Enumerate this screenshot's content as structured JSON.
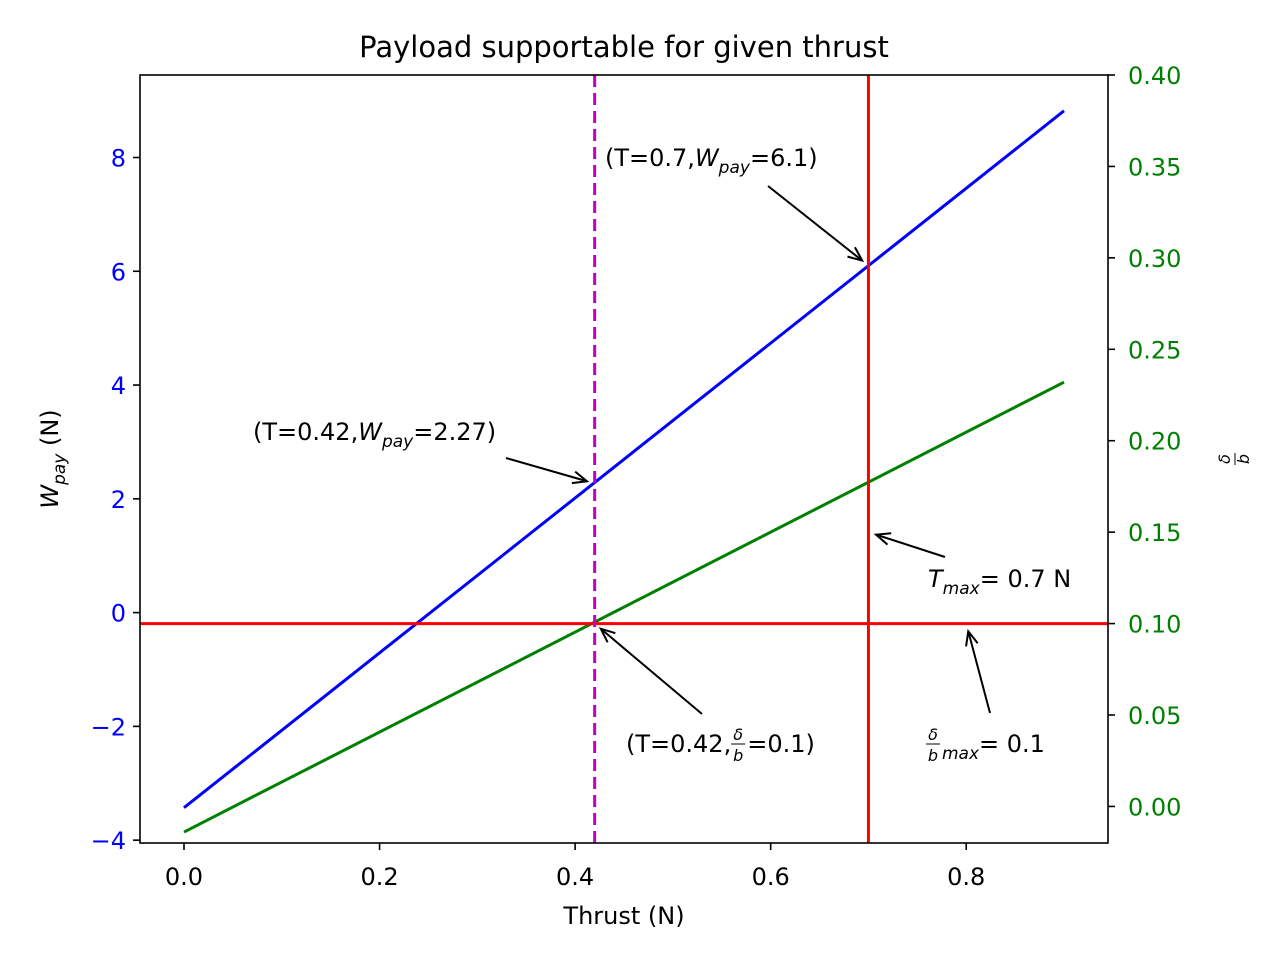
{
  "chart_data": {
    "type": "line",
    "title": "Payload supportable for given thrust",
    "xlabel": "Thrust (N)",
    "ylabel_left": {
      "base": "W",
      "sub": "pay",
      "suffix": " (N)"
    },
    "ylabel_right": {
      "num": "δ",
      "den": "b"
    },
    "xlim": [
      -0.045,
      0.945
    ],
    "ylim_left": [
      -4.05,
      9.45
    ],
    "ylim_right": [
      -0.02,
      0.4
    ],
    "x_ticks": [
      0.0,
      0.2,
      0.4,
      0.6,
      0.8
    ],
    "x_tick_labels": [
      "0.0",
      "0.2",
      "0.4",
      "0.6",
      "0.8"
    ],
    "y_left_ticks": [
      -4,
      -2,
      0,
      2,
      4,
      6,
      8
    ],
    "y_left_tick_labels": [
      "−4",
      "−2",
      "0",
      "2",
      "4",
      "6",
      "8"
    ],
    "y_right_ticks": [
      0.0,
      0.05,
      0.1,
      0.15,
      0.2,
      0.25,
      0.3,
      0.35,
      0.4
    ],
    "y_right_tick_labels": [
      "0.00",
      "0.05",
      "0.10",
      "0.15",
      "0.20",
      "0.25",
      "0.30",
      "0.35",
      "0.40"
    ],
    "grid": false,
    "series": [
      {
        "axis": "left",
        "color": "#0000ff",
        "x": [
          0.0,
          0.9
        ],
        "y": [
          -3.43,
          8.82
        ]
      },
      {
        "axis": "right",
        "color": "#008000",
        "x": [
          0.0,
          0.9
        ],
        "y": [
          -0.014,
          0.232
        ]
      }
    ],
    "reference_lines": [
      {
        "orientation": "vertical",
        "x": 0.7,
        "color": "#ff0000",
        "style": "solid"
      },
      {
        "orientation": "horizontal",
        "axis": "right",
        "y": 0.1,
        "color": "#ff0000",
        "style": "solid"
      },
      {
        "orientation": "vertical",
        "x": 0.42,
        "color": "#bf00bf",
        "style": "dashed"
      }
    ],
    "annotations": [
      {
        "id": "wpay-max",
        "parts": [
          [
            "(T=0.7, ",
            ""
          ],
          [
            "W",
            "i"
          ],
          [
            "pay",
            "sub"
          ],
          [
            "=6.1)",
            ""
          ]
        ],
        "point": {
          "x": 0.7,
          "y": 6.1,
          "axis": "left"
        }
      },
      {
        "id": "wpay-042",
        "parts": [
          [
            "(T=0.42, ",
            ""
          ],
          [
            "W",
            "i"
          ],
          [
            "pay",
            "sub"
          ],
          [
            "=2.27)",
            ""
          ]
        ],
        "point": {
          "x": 0.42,
          "y": 2.27,
          "axis": "left"
        }
      },
      {
        "id": "tmax",
        "parts": [
          [
            "T",
            "i"
          ],
          [
            "max",
            "sub"
          ],
          [
            " = 0.7 N",
            ""
          ]
        ],
        "point": {
          "x": 0.7,
          "y": 0.15,
          "axis": "right"
        }
      },
      {
        "id": "delta-042",
        "parts": [
          [
            "(T=0.42, ",
            ""
          ],
          [
            "δ|b",
            "frac"
          ],
          [
            "=0.1)",
            ""
          ]
        ],
        "point": {
          "x": 0.42,
          "y": 0.1,
          "axis": "right"
        }
      },
      {
        "id": "delta-max",
        "parts": [
          [
            "δ|b",
            "frac"
          ],
          [
            "max",
            "subi"
          ],
          [
            " = 0.1",
            ""
          ]
        ],
        "point": {
          "x": 0.8,
          "y": 0.1,
          "axis": "right"
        }
      }
    ]
  }
}
